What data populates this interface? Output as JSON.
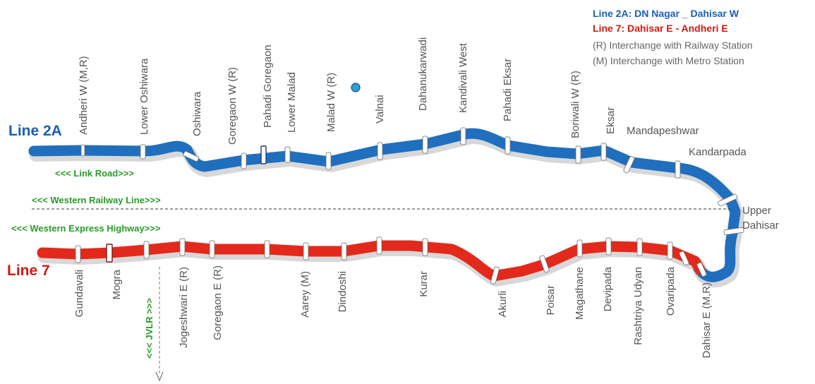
{
  "legend": {
    "line2a": "Line 2A: DN Nagar _ Dahisar W",
    "line7": "Line 7: Dahisar E - Andheri E",
    "note_r": "(R) Interchange with Railway Station",
    "note_m": "(M) Interchange with Metro Station"
  },
  "line_labels": {
    "line2a": "Line 2A",
    "line7": "Line 7"
  },
  "roads": {
    "link_road": "<<< Link Road>>>",
    "western_railway": "<<< Western Railway Line>>>",
    "western_express": "<<< Western Express  Highway>>>",
    "jvlr": "<<< JVLR >>>"
  },
  "colors": {
    "line2a": "#1f6fbe",
    "line7": "#e3291b",
    "legend_line2a": "#1a5fb4",
    "legend_line7": "#d01a10",
    "green_text": "#2a9a2a",
    "station_text": "#555555"
  },
  "stations_2a": [
    "Andheri W (M,R)",
    "Lower Oshiwara",
    "Oshiwara",
    "Goregaon W (R)",
    "Pahadi Goregaon",
    "Lower Malad",
    "Malad W (R)",
    "Valnai",
    "Dahanukarwadi",
    "Kandivali West",
    "Pahadi Eksar",
    "Boriwali W (R)",
    "Eksar",
    "Mandapeshwar",
    "Kandarpada",
    "Upper Dahisar"
  ],
  "stations_7": [
    "Gundavali",
    "Mogra",
    "Jogeshwari E (R)",
    "Goregaon E  (R)",
    "Aarey (M)",
    "Dindoshi",
    "Kurar",
    "Akurli",
    "Poisar",
    "Magathane",
    "Devipada",
    "Rashtriya Udyan",
    "Ovaripada",
    "Dahisar E (M,R)"
  ]
}
